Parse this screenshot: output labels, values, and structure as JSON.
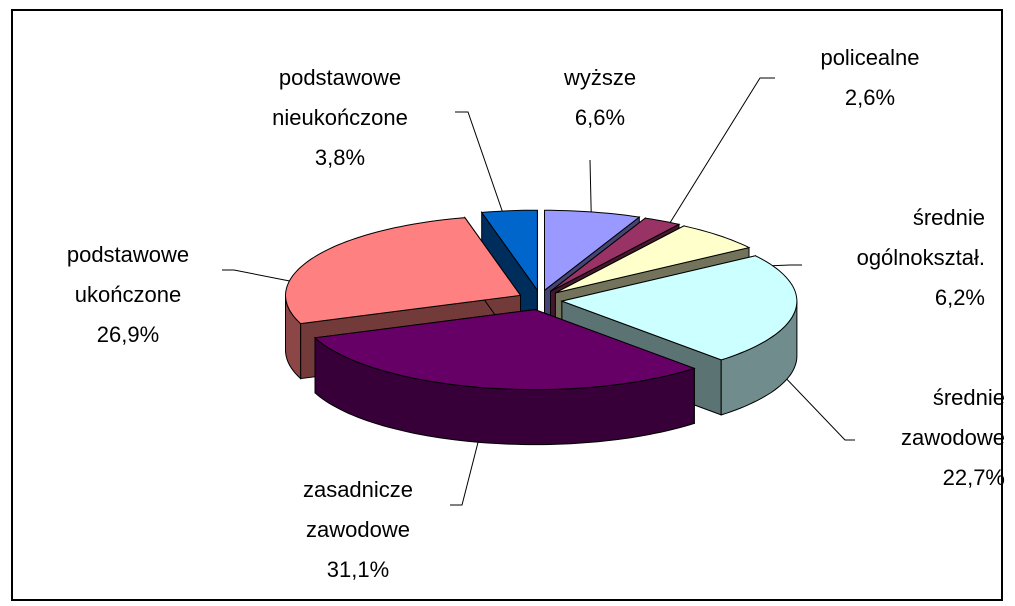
{
  "chart_data": {
    "type": "pie3d",
    "categories": [
      "wyższe",
      "policealne",
      "średnie ogólnokształ.",
      "średnie zawodowe",
      "zasadnicze zawodowe",
      "podstawowe ukończone",
      "podstawowe nieukończone"
    ],
    "values": [
      6.6,
      2.6,
      6.2,
      22.7,
      31.1,
      26.9,
      3.8
    ],
    "value_labels": [
      "6,6%",
      "2,6%",
      "6,2%",
      "22,7%",
      "31,1%",
      "26,9%",
      "3,8%"
    ],
    "colors": [
      "#9999ff",
      "#993366",
      "#ffffcc",
      "#ccffff",
      "#660066",
      "#ff8080",
      "#0066cc"
    ]
  }
}
